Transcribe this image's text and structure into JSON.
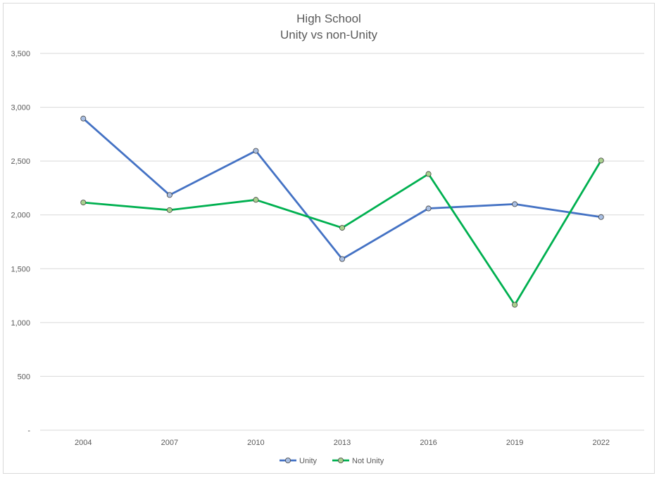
{
  "chart_data": {
    "type": "line",
    "title_lines": [
      "High School",
      "Unity vs non-Unity"
    ],
    "x": [
      "2004",
      "2007",
      "2010",
      "2013",
      "2016",
      "2019",
      "2022"
    ],
    "y_ticks": [
      {
        "value": 0,
        "label": "-"
      },
      {
        "value": 500,
        "label": "500"
      },
      {
        "value": 1000,
        "label": "1,000"
      },
      {
        "value": 1500,
        "label": "1,500"
      },
      {
        "value": 2000,
        "label": "2,000"
      },
      {
        "value": 2500,
        "label": "2,500"
      },
      {
        "value": 3000,
        "label": "3,000"
      },
      {
        "value": 3500,
        "label": "3,500"
      }
    ],
    "ylim": [
      0,
      3500
    ],
    "grid": true,
    "legend_position": "bottom",
    "series": [
      {
        "name": "Unity",
        "color": "#4472C4",
        "marker_fill": "#A9BFE3",
        "values": [
          2895,
          2185,
          2595,
          1590,
          2060,
          2100,
          1980
        ]
      },
      {
        "name": "Not Unity",
        "color": "#00B050",
        "marker_fill": "#A9D18E",
        "values": [
          2115,
          2045,
          2140,
          1880,
          2380,
          1165,
          2505
        ]
      }
    ]
  }
}
